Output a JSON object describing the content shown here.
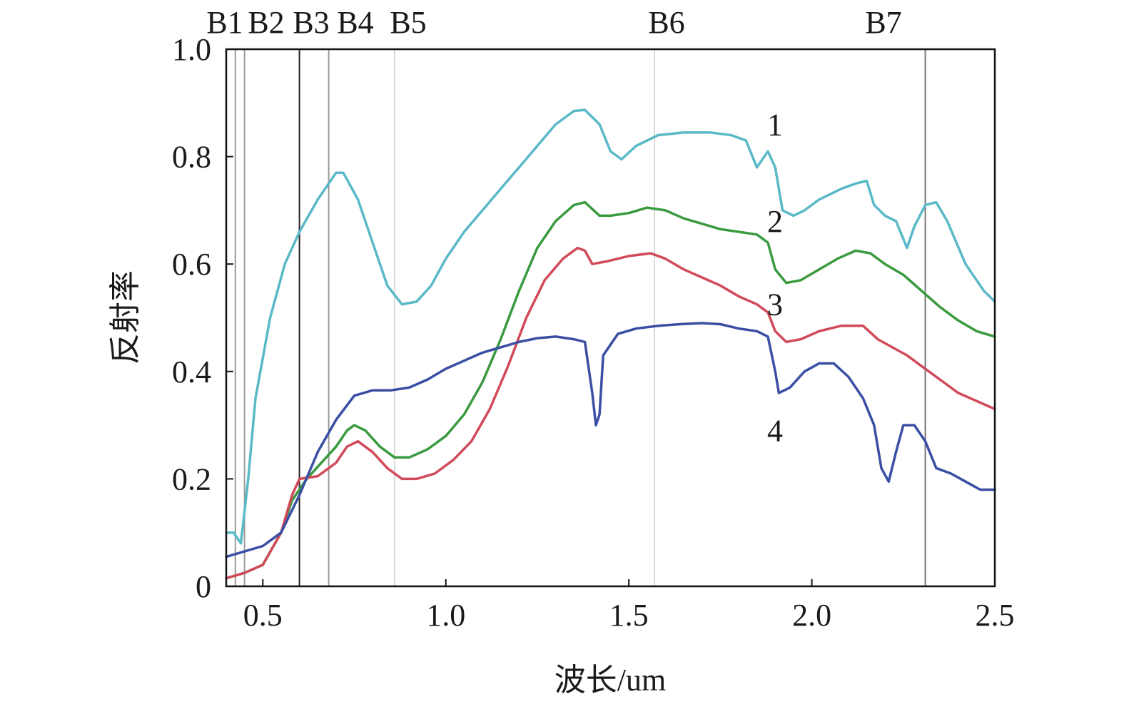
{
  "chart_data": {
    "type": "line",
    "xlabel": "波长/um",
    "ylabel": "反射率",
    "xlim": [
      0.4,
      2.5
    ],
    "ylim": [
      0,
      1.0
    ],
    "x_ticks": [
      {
        "value": 0.5,
        "label": "0.5"
      },
      {
        "value": 1.0,
        "label": "1.0"
      },
      {
        "value": 1.5,
        "label": "1.5"
      },
      {
        "value": 2.0,
        "label": "2.0"
      },
      {
        "value": 2.5,
        "label": "2.5"
      }
    ],
    "y_ticks": [
      {
        "value": 0,
        "label": "0"
      },
      {
        "value": 0.2,
        "label": "0.2"
      },
      {
        "value": 0.4,
        "label": "0.4"
      },
      {
        "value": 0.6,
        "label": "0.6"
      },
      {
        "value": 0.8,
        "label": "0.8"
      },
      {
        "value": 1.0,
        "label": "1.0"
      }
    ],
    "bands": [
      {
        "name": "B1",
        "line_x": 0.425,
        "line_color": "#999999"
      },
      {
        "name": "B2",
        "line_x": 0.45,
        "line_color": "#999999"
      },
      {
        "name": "B3",
        "line_x": 0.6,
        "line_color": "#222222"
      },
      {
        "name": "B4",
        "line_x": 0.68,
        "line_color": "#999999"
      },
      {
        "name": "B5",
        "line_x": 0.86,
        "line_color": "#d9d9d9"
      },
      {
        "name": "B6",
        "line_x": 1.57,
        "line_color": "#d9d9d9"
      },
      {
        "name": "B7",
        "line_x": 2.31,
        "line_color": "#777777"
      }
    ],
    "series": [
      {
        "label": "1",
        "label_at": [
          1.88,
          0.86
        ],
        "color": "#5ab9c8",
        "points": [
          [
            0.4,
            0.1
          ],
          [
            0.42,
            0.1
          ],
          [
            0.44,
            0.08
          ],
          [
            0.46,
            0.2
          ],
          [
            0.48,
            0.35
          ],
          [
            0.52,
            0.5
          ],
          [
            0.56,
            0.6
          ],
          [
            0.6,
            0.66
          ],
          [
            0.65,
            0.72
          ],
          [
            0.7,
            0.77
          ],
          [
            0.72,
            0.77
          ],
          [
            0.76,
            0.72
          ],
          [
            0.8,
            0.64
          ],
          [
            0.84,
            0.56
          ],
          [
            0.88,
            0.525
          ],
          [
            0.92,
            0.53
          ],
          [
            0.96,
            0.56
          ],
          [
            1.0,
            0.61
          ],
          [
            1.05,
            0.66
          ],
          [
            1.1,
            0.7
          ],
          [
            1.15,
            0.74
          ],
          [
            1.2,
            0.78
          ],
          [
            1.25,
            0.82
          ],
          [
            1.3,
            0.86
          ],
          [
            1.35,
            0.885
          ],
          [
            1.38,
            0.887
          ],
          [
            1.42,
            0.86
          ],
          [
            1.45,
            0.81
          ],
          [
            1.48,
            0.795
          ],
          [
            1.52,
            0.82
          ],
          [
            1.58,
            0.84
          ],
          [
            1.65,
            0.845
          ],
          [
            1.72,
            0.845
          ],
          [
            1.78,
            0.84
          ],
          [
            1.82,
            0.83
          ],
          [
            1.85,
            0.78
          ],
          [
            1.87,
            0.8
          ],
          [
            1.88,
            0.81
          ],
          [
            1.9,
            0.78
          ],
          [
            1.92,
            0.7
          ],
          [
            1.95,
            0.69
          ],
          [
            1.98,
            0.7
          ],
          [
            2.02,
            0.72
          ],
          [
            2.08,
            0.74
          ],
          [
            2.12,
            0.75
          ],
          [
            2.15,
            0.755
          ],
          [
            2.17,
            0.71
          ],
          [
            2.2,
            0.69
          ],
          [
            2.23,
            0.68
          ],
          [
            2.26,
            0.63
          ],
          [
            2.28,
            0.67
          ],
          [
            2.31,
            0.71
          ],
          [
            2.34,
            0.715
          ],
          [
            2.37,
            0.68
          ],
          [
            2.42,
            0.6
          ],
          [
            2.47,
            0.55
          ],
          [
            2.5,
            0.53
          ]
        ]
      },
      {
        "label": "2",
        "label_at": [
          1.88,
          0.68
        ],
        "color": "#3a9a3f",
        "points": [
          [
            0.4,
            0.015
          ],
          [
            0.45,
            0.025
          ],
          [
            0.5,
            0.04
          ],
          [
            0.55,
            0.1
          ],
          [
            0.58,
            0.16
          ],
          [
            0.62,
            0.2
          ],
          [
            0.66,
            0.23
          ],
          [
            0.7,
            0.26
          ],
          [
            0.73,
            0.29
          ],
          [
            0.75,
            0.3
          ],
          [
            0.78,
            0.29
          ],
          [
            0.82,
            0.26
          ],
          [
            0.86,
            0.24
          ],
          [
            0.9,
            0.24
          ],
          [
            0.95,
            0.255
          ],
          [
            1.0,
            0.28
          ],
          [
            1.05,
            0.32
          ],
          [
            1.1,
            0.38
          ],
          [
            1.15,
            0.46
          ],
          [
            1.2,
            0.55
          ],
          [
            1.25,
            0.63
          ],
          [
            1.3,
            0.68
          ],
          [
            1.35,
            0.71
          ],
          [
            1.38,
            0.715
          ],
          [
            1.42,
            0.69
          ],
          [
            1.45,
            0.69
          ],
          [
            1.5,
            0.695
          ],
          [
            1.55,
            0.705
          ],
          [
            1.6,
            0.7
          ],
          [
            1.65,
            0.685
          ],
          [
            1.7,
            0.675
          ],
          [
            1.75,
            0.665
          ],
          [
            1.8,
            0.66
          ],
          [
            1.85,
            0.655
          ],
          [
            1.88,
            0.64
          ],
          [
            1.9,
            0.59
          ],
          [
            1.93,
            0.565
          ],
          [
            1.97,
            0.57
          ],
          [
            2.02,
            0.59
          ],
          [
            2.07,
            0.61
          ],
          [
            2.12,
            0.625
          ],
          [
            2.16,
            0.62
          ],
          [
            2.2,
            0.6
          ],
          [
            2.25,
            0.58
          ],
          [
            2.3,
            0.55
          ],
          [
            2.35,
            0.52
          ],
          [
            2.4,
            0.495
          ],
          [
            2.45,
            0.475
          ],
          [
            2.5,
            0.465
          ]
        ]
      },
      {
        "label": "3",
        "label_at": [
          1.88,
          0.525
        ],
        "color": "#d14a5a",
        "points": [
          [
            0.4,
            0.015
          ],
          [
            0.45,
            0.025
          ],
          [
            0.5,
            0.04
          ],
          [
            0.55,
            0.1
          ],
          [
            0.58,
            0.17
          ],
          [
            0.6,
            0.2
          ],
          [
            0.65,
            0.205
          ],
          [
            0.7,
            0.23
          ],
          [
            0.73,
            0.26
          ],
          [
            0.76,
            0.27
          ],
          [
            0.8,
            0.25
          ],
          [
            0.84,
            0.22
          ],
          [
            0.88,
            0.2
          ],
          [
            0.92,
            0.2
          ],
          [
            0.97,
            0.21
          ],
          [
            1.02,
            0.235
          ],
          [
            1.07,
            0.27
          ],
          [
            1.12,
            0.33
          ],
          [
            1.17,
            0.41
          ],
          [
            1.22,
            0.5
          ],
          [
            1.27,
            0.57
          ],
          [
            1.32,
            0.61
          ],
          [
            1.36,
            0.63
          ],
          [
            1.38,
            0.625
          ],
          [
            1.4,
            0.6
          ],
          [
            1.44,
            0.605
          ],
          [
            1.5,
            0.615
          ],
          [
            1.56,
            0.62
          ],
          [
            1.6,
            0.61
          ],
          [
            1.65,
            0.59
          ],
          [
            1.7,
            0.575
          ],
          [
            1.75,
            0.56
          ],
          [
            1.8,
            0.54
          ],
          [
            1.85,
            0.525
          ],
          [
            1.88,
            0.51
          ],
          [
            1.9,
            0.475
          ],
          [
            1.93,
            0.455
          ],
          [
            1.97,
            0.46
          ],
          [
            2.02,
            0.475
          ],
          [
            2.08,
            0.485
          ],
          [
            2.14,
            0.485
          ],
          [
            2.18,
            0.46
          ],
          [
            2.22,
            0.445
          ],
          [
            2.26,
            0.43
          ],
          [
            2.3,
            0.41
          ],
          [
            2.35,
            0.385
          ],
          [
            2.4,
            0.36
          ],
          [
            2.45,
            0.345
          ],
          [
            2.5,
            0.33
          ]
        ]
      },
      {
        "label": "4",
        "label_at": [
          1.88,
          0.29
        ],
        "color": "#3a4fa3",
        "points": [
          [
            0.4,
            0.055
          ],
          [
            0.45,
            0.065
          ],
          [
            0.5,
            0.075
          ],
          [
            0.55,
            0.1
          ],
          [
            0.6,
            0.17
          ],
          [
            0.65,
            0.25
          ],
          [
            0.7,
            0.31
          ],
          [
            0.75,
            0.355
          ],
          [
            0.8,
            0.365
          ],
          [
            0.85,
            0.365
          ],
          [
            0.9,
            0.37
          ],
          [
            0.95,
            0.385
          ],
          [
            1.0,
            0.405
          ],
          [
            1.05,
            0.42
          ],
          [
            1.1,
            0.435
          ],
          [
            1.15,
            0.445
          ],
          [
            1.2,
            0.455
          ],
          [
            1.25,
            0.462
          ],
          [
            1.3,
            0.465
          ],
          [
            1.35,
            0.46
          ],
          [
            1.38,
            0.455
          ],
          [
            1.4,
            0.36
          ],
          [
            1.41,
            0.3
          ],
          [
            1.42,
            0.32
          ],
          [
            1.43,
            0.43
          ],
          [
            1.47,
            0.47
          ],
          [
            1.52,
            0.48
          ],
          [
            1.58,
            0.485
          ],
          [
            1.64,
            0.488
          ],
          [
            1.7,
            0.49
          ],
          [
            1.75,
            0.488
          ],
          [
            1.8,
            0.48
          ],
          [
            1.85,
            0.475
          ],
          [
            1.88,
            0.465
          ],
          [
            1.9,
            0.4
          ],
          [
            1.91,
            0.36
          ],
          [
            1.94,
            0.37
          ],
          [
            1.98,
            0.4
          ],
          [
            2.02,
            0.415
          ],
          [
            2.06,
            0.415
          ],
          [
            2.1,
            0.39
          ],
          [
            2.14,
            0.35
          ],
          [
            2.17,
            0.3
          ],
          [
            2.19,
            0.22
          ],
          [
            2.21,
            0.195
          ],
          [
            2.23,
            0.25
          ],
          [
            2.25,
            0.3
          ],
          [
            2.28,
            0.3
          ],
          [
            2.31,
            0.27
          ],
          [
            2.34,
            0.22
          ],
          [
            2.38,
            0.21
          ],
          [
            2.42,
            0.195
          ],
          [
            2.46,
            0.18
          ],
          [
            2.5,
            0.18
          ]
        ]
      }
    ]
  }
}
